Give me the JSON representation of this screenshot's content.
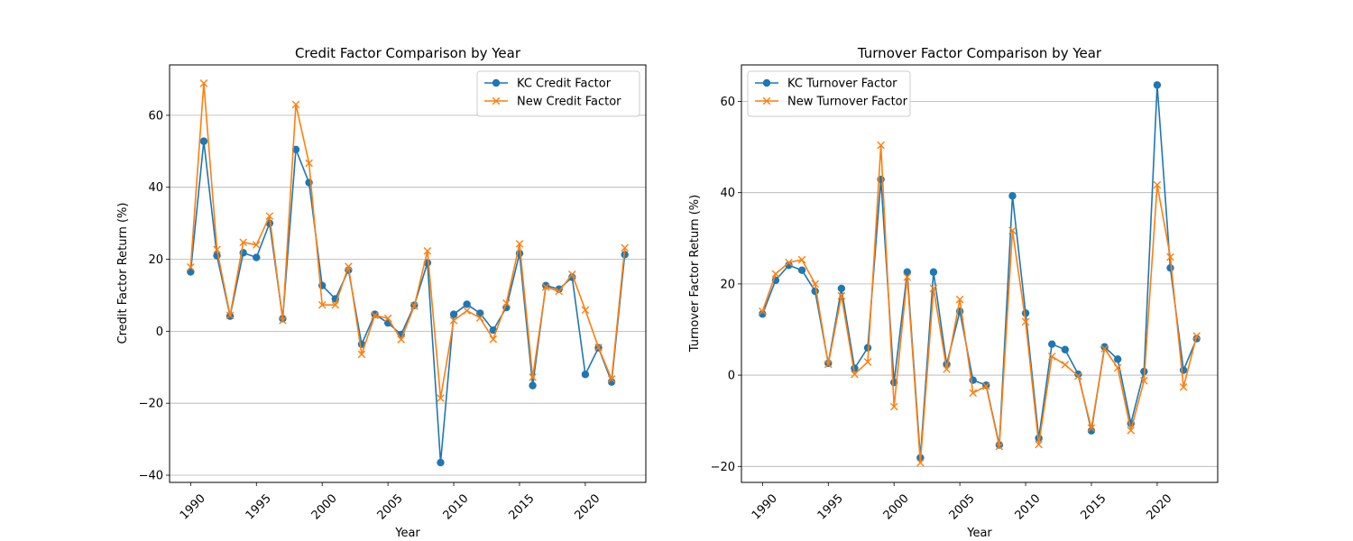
{
  "chart_data": [
    {
      "type": "line",
      "title": "Credit Factor Comparison by Year",
      "xlabel": "Year",
      "ylabel": "Credit Factor Return (%)",
      "xlim": [
        1988.4,
        2024.6
      ],
      "ylim": [
        -42,
        74
      ],
      "xticks": [
        1990,
        1995,
        2000,
        2005,
        2010,
        2015,
        2020
      ],
      "yticks": [
        -40,
        -20,
        0,
        20,
        40,
        60
      ],
      "grid": "y",
      "legend": "upper right",
      "x": [
        1990,
        1991,
        1992,
        1993,
        1994,
        1995,
        1996,
        1997,
        1998,
        1999,
        2000,
        2001,
        2002,
        2003,
        2004,
        2005,
        2006,
        2007,
        2008,
        2009,
        2010,
        2011,
        2012,
        2013,
        2014,
        2015,
        2016,
        2017,
        2018,
        2019,
        2020,
        2021,
        2022,
        2023
      ],
      "series": [
        {
          "name": "KC Credit Factor",
          "color": "#1f77b4",
          "marker": "circle",
          "values": [
            16.5,
            52.8,
            21.0,
            4.2,
            21.8,
            20.5,
            30.0,
            3.5,
            50.5,
            41.3,
            12.7,
            9.0,
            17.0,
            -3.6,
            4.7,
            2.3,
            -0.9,
            7.2,
            19.0,
            -36.5,
            4.7,
            7.5,
            5.0,
            0.3,
            6.6,
            21.6,
            -15.1,
            12.7,
            11.7,
            15.0,
            -12.0,
            -4.6,
            -14.1,
            21.3
          ]
        },
        {
          "name": "New Credit Factor",
          "color": "#ff7f0e",
          "marker": "x",
          "values": [
            17.8,
            68.9,
            22.7,
            4.4,
            24.7,
            24.0,
            32.0,
            3.0,
            63.0,
            46.7,
            7.3,
            7.3,
            18.0,
            -6.4,
            4.4,
            3.6,
            -2.3,
            7.0,
            22.3,
            -18.6,
            3.0,
            5.7,
            3.7,
            -2.2,
            7.8,
            24.3,
            -12.8,
            12.3,
            11.1,
            15.8,
            5.9,
            -4.5,
            -13.3,
            23.2
          ]
        }
      ]
    },
    {
      "type": "line",
      "title": "Turnover Factor Comparison by Year",
      "xlabel": "Year",
      "ylabel": "Turnover Factor Return (%)",
      "xlim": [
        1988.4,
        2024.6
      ],
      "ylim": [
        -23.5,
        68
      ],
      "xticks": [
        1990,
        1995,
        2000,
        2005,
        2010,
        2015,
        2020
      ],
      "yticks": [
        -20,
        0,
        20,
        40,
        60
      ],
      "grid": "y",
      "legend": "upper left",
      "x": [
        1990,
        1991,
        1992,
        1993,
        1994,
        1995,
        1996,
        1997,
        1998,
        1999,
        2000,
        2001,
        2002,
        2003,
        2004,
        2005,
        2006,
        2007,
        2008,
        2009,
        2010,
        2011,
        2012,
        2013,
        2014,
        2015,
        2016,
        2017,
        2018,
        2019,
        2020,
        2021,
        2022,
        2023
      ],
      "series": [
        {
          "name": "KC Turnover Factor",
          "color": "#1f77b4",
          "marker": "circle",
          "values": [
            13.4,
            20.8,
            24.1,
            23.0,
            18.4,
            2.6,
            19.0,
            1.5,
            6.0,
            42.9,
            -1.6,
            22.6,
            -18.1,
            22.6,
            2.4,
            14.0,
            -1.1,
            -2.2,
            -15.3,
            39.3,
            13.6,
            -13.8,
            6.8,
            5.6,
            0.2,
            -12.2,
            6.2,
            3.5,
            -10.6,
            0.8,
            63.6,
            23.5,
            1.1,
            8.0
          ]
        },
        {
          "name": "New Turnover Factor",
          "color": "#ff7f0e",
          "marker": "x",
          "values": [
            14.0,
            22.2,
            24.7,
            25.3,
            20.0,
            2.4,
            17.4,
            0.2,
            2.9,
            50.4,
            -6.9,
            21.5,
            -19.2,
            19.0,
            1.3,
            16.6,
            -3.9,
            -2.4,
            -15.6,
            31.7,
            11.7,
            -15.2,
            4.1,
            2.3,
            -0.2,
            -11.6,
            5.8,
            1.6,
            -12.1,
            -1.2,
            41.7,
            25.9,
            -2.6,
            8.6
          ]
        }
      ]
    }
  ]
}
